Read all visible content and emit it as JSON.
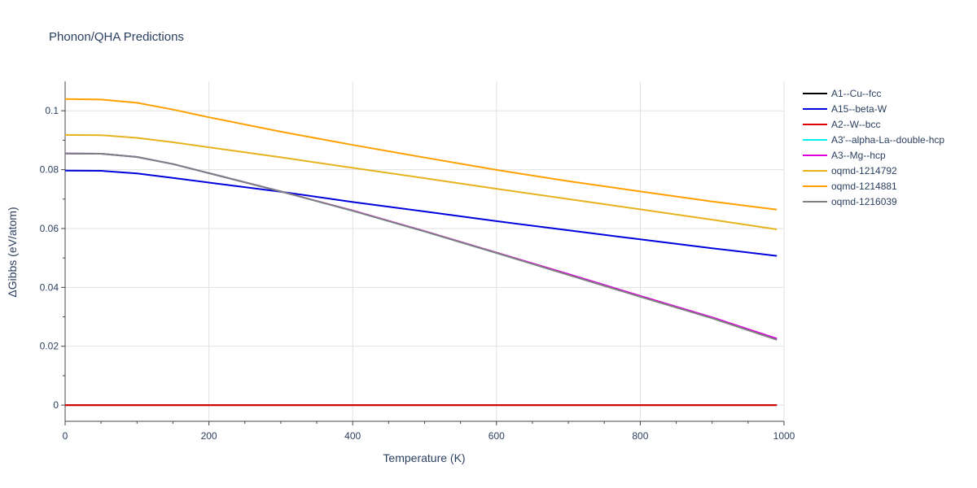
{
  "chart_data": {
    "type": "line",
    "title": "Phonon/QHA Predictions",
    "xlabel": "Temperature (K)",
    "ylabel": "ΔGibbs (eV/atom)",
    "xlim": [
      0,
      1000
    ],
    "ylim": [
      -0.0055,
      0.11
    ],
    "x_ticks": [
      0,
      200,
      400,
      600,
      800,
      1000
    ],
    "x_tick_labels": [
      "0",
      "200",
      "400",
      "600",
      "800",
      "1000"
    ],
    "y_ticks": [
      0,
      0.02,
      0.04,
      0.06,
      0.08,
      0.1
    ],
    "y_tick_labels": [
      "0",
      "0.02",
      "0.04",
      "0.06",
      "0.08",
      "0.1"
    ],
    "grid": true,
    "legend_position": "right",
    "x": [
      0,
      50,
      100,
      150,
      200,
      300,
      400,
      500,
      600,
      700,
      800,
      900,
      990
    ],
    "series": [
      {
        "name": "A1--Cu--fcc",
        "color": "#000000",
        "values": [
          0,
          0,
          0,
          0,
          0,
          0,
          0,
          0,
          0,
          0,
          0,
          0,
          0
        ]
      },
      {
        "name": "A15--beta-W",
        "color": "#0000dd",
        "values": [
          0.0797,
          0.0796,
          0.0787,
          0.0772,
          0.0756,
          0.0725,
          0.069,
          0.0658,
          0.0625,
          0.0594,
          0.0563,
          0.0533,
          0.0507
        ]
      },
      {
        "name": "A2--W--bcc",
        "color": "#dd0000",
        "values": [
          0,
          0,
          0,
          0,
          0,
          0,
          0,
          0,
          0,
          0,
          0,
          0,
          0
        ]
      },
      {
        "name": "A3'--alpha-La--double-hcp",
        "color": "#00eeee",
        "values": [
          0.0855,
          0.0854,
          0.0843,
          0.0819,
          0.0788,
          0.0726,
          0.066,
          0.059,
          0.0517,
          0.0443,
          0.0369,
          0.0296,
          0.0224
        ]
      },
      {
        "name": "A3--Mg--hcp",
        "color": "#dd00dd",
        "values": [
          0.0855,
          0.0854,
          0.0843,
          0.0819,
          0.0788,
          0.0726,
          0.0661,
          0.0591,
          0.0518,
          0.0445,
          0.0371,
          0.0298,
          0.0226
        ]
      },
      {
        "name": "oqmd-1214792",
        "color": "#e6b31e",
        "values": [
          0.0918,
          0.0917,
          0.0908,
          0.0893,
          0.0876,
          0.0842,
          0.0806,
          0.0771,
          0.0735,
          0.07,
          0.0665,
          0.063,
          0.0597
        ]
      },
      {
        "name": "oqmd-1214881",
        "color": "#ffa000",
        "values": [
          0.104,
          0.1038,
          0.1027,
          0.1004,
          0.0978,
          0.0929,
          0.0884,
          0.0841,
          0.0799,
          0.0761,
          0.0726,
          0.0692,
          0.0664
        ]
      },
      {
        "name": "oqmd-1216039",
        "color": "#808080",
        "values": [
          0.0855,
          0.0854,
          0.0843,
          0.0819,
          0.0788,
          0.0726,
          0.066,
          0.059,
          0.0517,
          0.0442,
          0.0368,
          0.0295,
          0.0222
        ]
      }
    ]
  }
}
